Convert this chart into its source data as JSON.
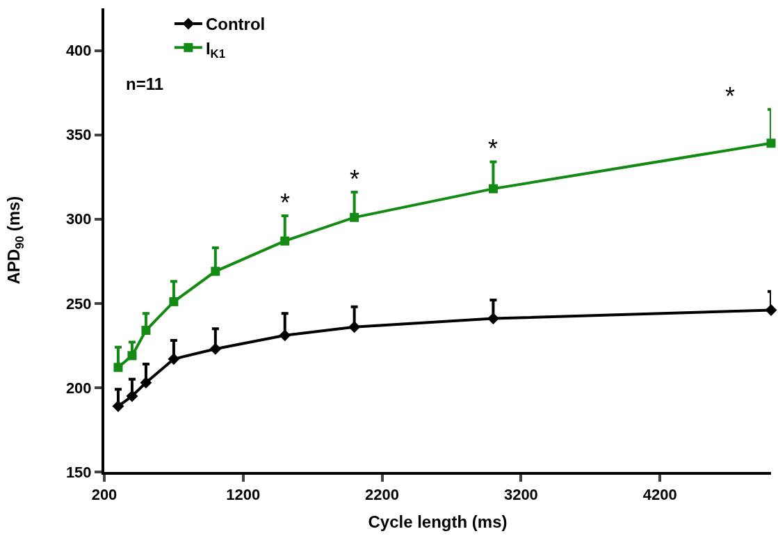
{
  "chart_data": {
    "type": "line",
    "xlabel": "Cycle length (ms)",
    "ylabel": "APD$_{90}$ (ms)",
    "x": [
      300,
      400,
      500,
      700,
      1000,
      1500,
      2000,
      3000,
      5000
    ],
    "series": [
      {
        "name": "Control",
        "color": "#000000",
        "marker": "diamond",
        "values": [
          189,
          195,
          203,
          217,
          223,
          231,
          236,
          241,
          246
        ],
        "errors": [
          [
            189,
            199
          ],
          [
            195,
            205
          ],
          [
            203,
            214
          ],
          [
            217,
            228
          ],
          [
            223,
            235
          ],
          [
            231,
            244
          ],
          [
            236,
            248
          ],
          [
            241,
            252
          ],
          [
            246,
            257
          ]
        ]
      },
      {
        "name": "I$_{K1}$",
        "color": "#138a13",
        "marker": "square",
        "values": [
          212,
          219,
          234,
          251,
          269,
          287,
          301,
          318,
          345
        ],
        "errors": [
          [
            212,
            224
          ],
          [
            219,
            227
          ],
          [
            234,
            244
          ],
          [
            251,
            263
          ],
          [
            269,
            283
          ],
          [
            287,
            302
          ],
          [
            301,
            316
          ],
          [
            318,
            334
          ],
          [
            345,
            365
          ]
        ]
      }
    ],
    "xlim": [
      200,
      5000
    ],
    "xticks": [
      200,
      1200,
      2200,
      3200,
      4200
    ],
    "ylim": [
      150,
      425
    ],
    "yticks": [
      150,
      200,
      250,
      300,
      350,
      400
    ],
    "legend": "top left",
    "line_style": "solid",
    "annotations": [
      "n=11",
      {
        "text": "*",
        "x": 1500,
        "y": 302
      },
      {
        "text": "*",
        "x": 2000,
        "y": 316
      },
      {
        "text": "*",
        "x": 3000,
        "y": 334
      },
      {
        "text": "*",
        "x": 5000,
        "y": 365
      }
    ]
  }
}
